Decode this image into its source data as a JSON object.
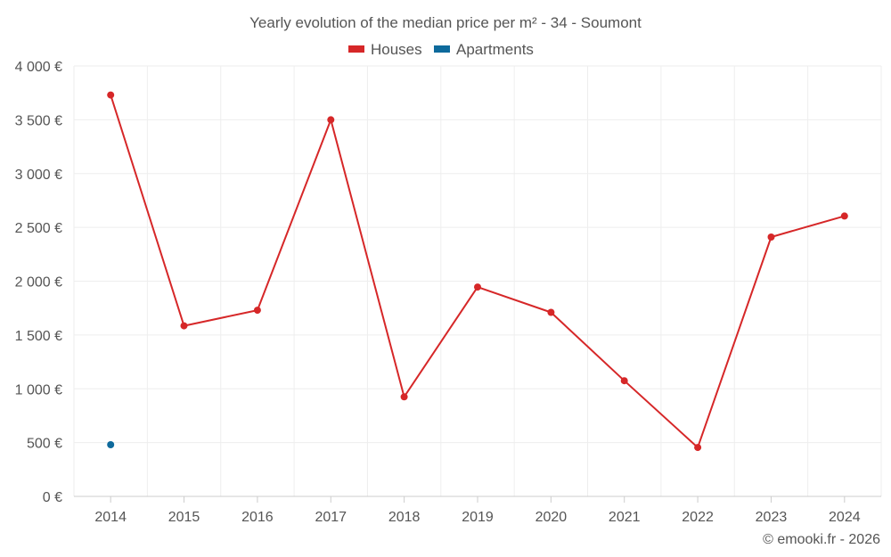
{
  "chart_data": {
    "type": "line",
    "title": "Yearly evolution of the median price per m² - 34 - Soumont",
    "categories": [
      "2014",
      "2015",
      "2016",
      "2017",
      "2018",
      "2019",
      "2020",
      "2021",
      "2022",
      "2023",
      "2024"
    ],
    "series": [
      {
        "name": "Houses",
        "color": "#d62728",
        "values": [
          3730,
          1585,
          1730,
          3500,
          925,
          1945,
          1710,
          1075,
          455,
          2410,
          2605
        ]
      },
      {
        "name": "Apartments",
        "color": "#0e6a9c",
        "values": [
          480,
          null,
          null,
          null,
          null,
          null,
          null,
          null,
          null,
          null,
          null
        ]
      }
    ],
    "y_ticks": [
      "0 €",
      "500 €",
      "1 000 €",
      "1 500 €",
      "2 000 €",
      "2 500 €",
      "3 000 €",
      "3 500 €",
      "4 000 €"
    ],
    "ylim": [
      0,
      4000
    ],
    "xlabel": "",
    "ylabel": "",
    "grid": true,
    "legend_position": "top-center"
  },
  "credit": "© emooki.fr - 2026"
}
